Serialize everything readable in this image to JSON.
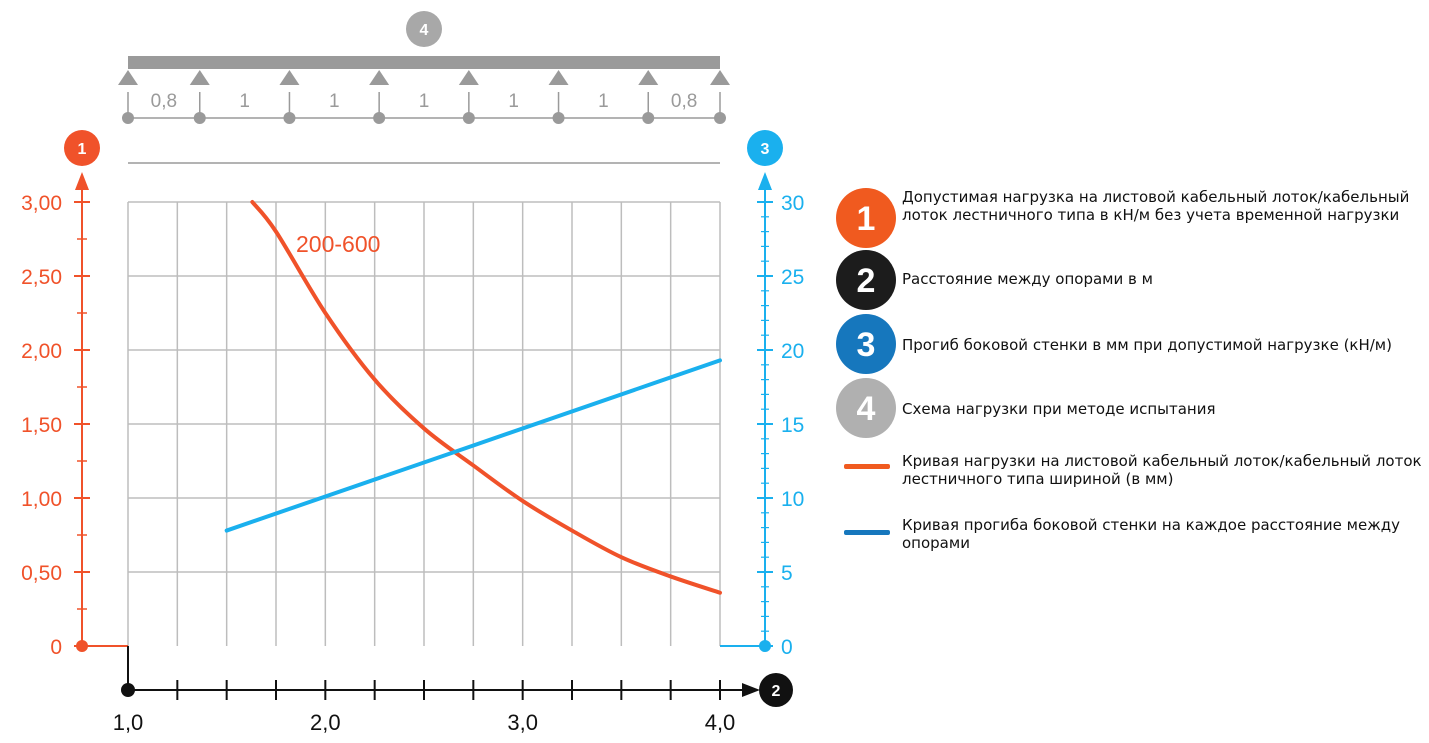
{
  "chart_data": {
    "type": "line",
    "x_axis": {
      "range": [
        1.0,
        4.0
      ],
      "tick_labels": [
        "1,0",
        "2,0",
        "3,0",
        "4,0"
      ],
      "tick_values": [
        1.0,
        2.0,
        3.0,
        4.0
      ],
      "badge": "2",
      "badge_color": "#111111"
    },
    "y_left": {
      "range": [
        0,
        3.0
      ],
      "tick_values": [
        0,
        0.5,
        1.0,
        1.5,
        2.0,
        2.5,
        3.0
      ],
      "tick_labels": [
        "0",
        "0,50",
        "1,00",
        "1,50",
        "2,00",
        "2,50",
        "3,00"
      ],
      "badge": "1",
      "color": "#f0522a"
    },
    "y_right": {
      "range": [
        0,
        30
      ],
      "tick_values": [
        0,
        5,
        10,
        15,
        20,
        25,
        30
      ],
      "tick_labels": [
        "0",
        "5",
        "10",
        "15",
        "20",
        "25",
        "30"
      ],
      "badge": "3",
      "color": "#1ab0ee"
    },
    "series": [
      {
        "name": "200-600",
        "axis": "left",
        "color": "#f0522a",
        "points": [
          [
            1.63,
            3.0
          ],
          [
            1.75,
            2.8
          ],
          [
            2.0,
            2.25
          ],
          [
            2.25,
            1.8
          ],
          [
            2.5,
            1.47
          ],
          [
            2.75,
            1.22
          ],
          [
            3.0,
            0.98
          ],
          [
            3.25,
            0.78
          ],
          [
            3.5,
            0.6
          ],
          [
            3.75,
            0.47
          ],
          [
            4.0,
            0.36
          ]
        ]
      },
      {
        "axis": "right",
        "color": "#1ab0ee",
        "points": [
          [
            1.5,
            7.8
          ],
          [
            4.0,
            19.3
          ]
        ]
      }
    ],
    "load_scheme": {
      "badge": "4",
      "color": "#a8a8a8",
      "spans": [
        "0,8",
        "1",
        "1",
        "1",
        "1",
        "1",
        "0,8"
      ]
    },
    "grid": true
  },
  "legend": [
    {
      "badge": "1",
      "color": "#f05a1f",
      "text": "Допустимая нагрузка на листовой кабельный лоток/кабельный лоток лестничного типа в кН/м без учета временной нагрузки"
    },
    {
      "badge": "2",
      "color": "#1c1c1c",
      "text": "Расстояние между опорами в м"
    },
    {
      "badge": "3",
      "color": "#1677bd",
      "text": "Прогиб боковой стенки в мм при допустимой нагрузке (кН/м)"
    },
    {
      "badge": "4",
      "color": "#b0b0b0",
      "text": "Схема нагрузки при методе испытания"
    },
    {
      "line_color": "#f05a1f",
      "text": "Кривая нагрузки на листовой кабельный лоток/кабельный лоток лестничного типа шириной (в мм)"
    },
    {
      "line_color": "#1677bd",
      "text": "Кривая прогиба боковой стенки на каждое расстояние между опорами"
    }
  ]
}
